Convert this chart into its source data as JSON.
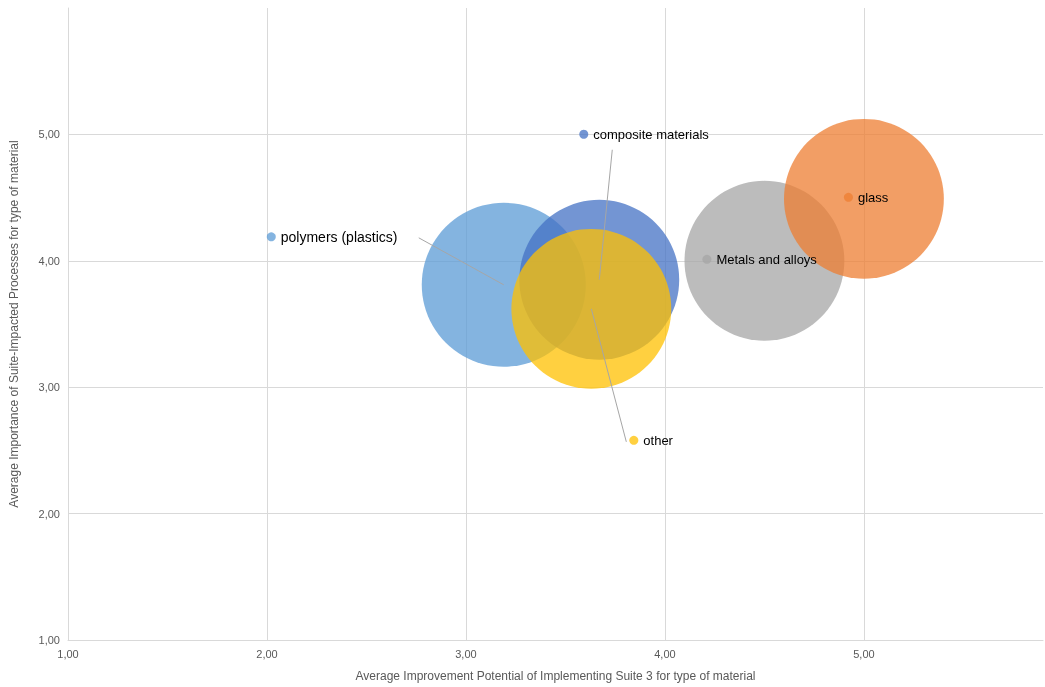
{
  "chart_data": {
    "type": "bubble",
    "xlabel": "Average Improvement Potential of Implementing Suite 3 for type of material",
    "ylabel": "Average Importance of Suite-Impacted Processes for type of material",
    "series": [
      {
        "name": "polymers (plastics)",
        "color": "#5b9bd5",
        "x": [
          3.19
        ],
        "values": [
          3.81
        ],
        "sizes": [
          1
        ]
      },
      {
        "name": "composite materials",
        "color": "#4472c4",
        "x": [
          3.67
        ],
        "values": [
          3.85
        ],
        "sizes": [
          0.95
        ]
      },
      {
        "name": "other",
        "color": "#ffc000",
        "x": [
          3.63
        ],
        "values": [
          3.62
        ],
        "sizes": [
          0.95
        ]
      },
      {
        "name": "Metals and alloys",
        "color": "#a5a5a5",
        "x": [
          4.5
        ],
        "values": [
          4.0
        ],
        "sizes": [
          0.95
        ]
      },
      {
        "name": "glass",
        "color": "#ed7d31",
        "x": [
          5.0
        ],
        "values": [
          4.49
        ],
        "sizes": [
          0.95
        ]
      }
    ],
    "xlim": [
      1,
      5.9
    ],
    "xticks": [
      {
        "value": 1,
        "label": "1,00"
      },
      {
        "value": 2,
        "label": "2,00"
      },
      {
        "value": 3,
        "label": "3,00"
      },
      {
        "value": 4,
        "label": "4,00"
      },
      {
        "value": 5,
        "label": "5,00"
      }
    ],
    "ylim": [
      1,
      6
    ],
    "yticks": [
      {
        "value": 1,
        "label": "1,00"
      },
      {
        "value": 2,
        "label": "2,00"
      },
      {
        "value": 3,
        "label": "3,00"
      },
      {
        "value": 4,
        "label": "4,00"
      },
      {
        "value": 5,
        "label": "5,00"
      }
    ],
    "grid": true,
    "legend": "center"
  }
}
